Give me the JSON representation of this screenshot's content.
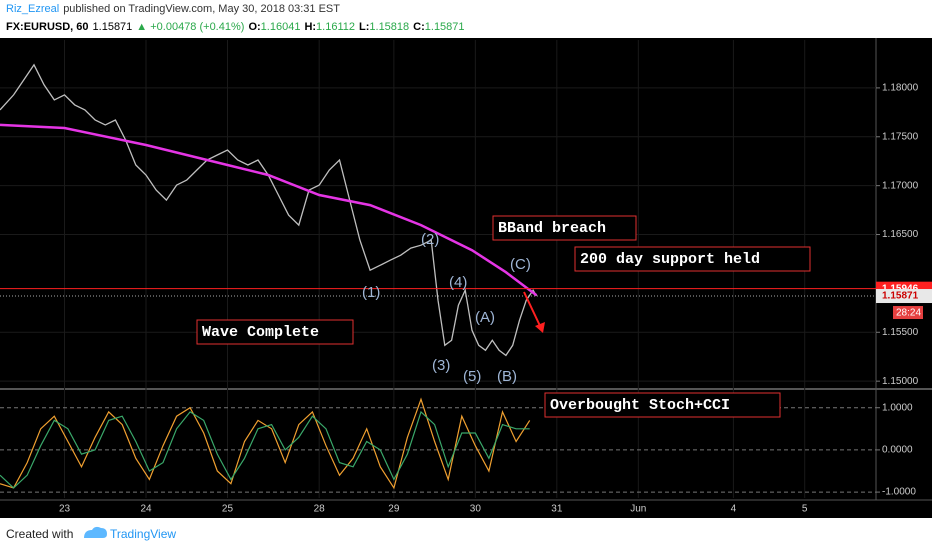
{
  "header": {
    "author": "Riz_Ezreal",
    "published": "published on TradingView.com, May 30, 2018 03:31 EST",
    "symbol": "FX:EURUSD, 60",
    "last": "1.15871",
    "change": "▲ +0.00478 (+0.41%)",
    "o_label": "O:",
    "o": "1.16041",
    "h_label": "H:",
    "h": "1.16112",
    "l_label": "L:",
    "l": "1.15818",
    "c_label": "C:",
    "c": "1.15871"
  },
  "chart_data": [
    {
      "type": "line",
      "x": [
        -19,
        -15,
        -12,
        -9,
        -6,
        -3,
        0,
        3,
        6,
        9,
        12,
        15,
        18,
        21,
        24,
        27,
        30,
        33,
        36,
        39,
        42,
        45,
        48,
        51,
        54,
        57,
        60,
        63,
        66,
        69,
        72,
        75,
        78,
        81,
        84,
        87,
        90,
        93,
        96,
        99,
        102,
        105,
        108,
        110,
        112,
        114,
        116,
        118,
        120,
        122,
        124,
        126,
        128,
        130,
        132,
        134,
        136,
        138,
        139
      ],
      "series": [
        {
          "color": "#bfbfbf",
          "values": [
            1.17775,
            1.17928,
            1.18082,
            1.18236,
            1.18031,
            1.17877,
            1.17928,
            1.17826,
            1.17775,
            1.17672,
            1.17621,
            1.17672,
            1.17467,
            1.17211,
            1.17109,
            1.16955,
            1.16852,
            1.17006,
            1.17057,
            1.1716,
            1.17262,
            1.17314,
            1.17365,
            1.17262,
            1.17211,
            1.17262,
            1.17109,
            1.16904,
            1.16699,
            1.16596,
            1.16955,
            1.17006,
            1.1716,
            1.17262,
            1.16852,
            1.16443,
            1.16135,
            1.16186,
            1.16238,
            1.16289,
            1.16361,
            1.16391,
            1.16443,
            1.15828,
            1.15367,
            1.15418,
            1.15777,
            1.1593,
            1.1552,
            1.15367,
            1.15316,
            1.15418,
            1.15316,
            1.15264,
            1.15367,
            1.15623,
            1.15828,
            1.1593,
            1.15871
          ]
        }
      ],
      "ma": {
        "color": "#e535e5",
        "x": [
          -19,
          0,
          24,
          48,
          60,
          75,
          90,
          105,
          120,
          130,
          139
        ],
        "values": [
          1.17621,
          1.1759,
          1.17416,
          1.17211,
          1.17109,
          1.16904,
          1.16801,
          1.16596,
          1.1634,
          1.16115,
          1.15879
        ]
      },
      "xlim": [
        -19,
        239
      ],
      "ylim": [
        1.1493,
        1.1849
      ],
      "xticks": [
        {
          "value": 0,
          "label": "23"
        },
        {
          "value": 24,
          "label": "24"
        },
        {
          "value": 48,
          "label": "25"
        },
        {
          "value": 75,
          "label": "28"
        },
        {
          "value": 97,
          "label": "29"
        },
        {
          "value": 121,
          "label": "30"
        },
        {
          "value": 145,
          "label": "31"
        },
        {
          "value": 169,
          "label": "Jun"
        },
        {
          "value": 197,
          "label": "4"
        },
        {
          "value": 218,
          "label": "5"
        }
      ],
      "yticks": [
        {
          "value": 1.15,
          "label": "1.15000"
        },
        {
          "value": 1.155,
          "label": "1.15500"
        },
        {
          "value": 1.165,
          "label": "1.16500"
        },
        {
          "value": 1.17,
          "label": "1.17000"
        },
        {
          "value": 1.175,
          "label": "1.17500"
        },
        {
          "value": 1.18,
          "label": "1.18000"
        }
      ],
      "hline": {
        "value": 1.15946,
        "label": "1.15946",
        "color": "#ff2020"
      },
      "last_price": {
        "value": 1.15871,
        "label": "1.15871"
      },
      "countdown": "28:24",
      "grid": true,
      "annotations": [
        "BBand breach",
        "200 day support held",
        "Wave Complete"
      ],
      "waves": [
        "(1)",
        "(2)",
        "(3)",
        "(4)",
        "(5)",
        "(A)",
        "(B)",
        "(C)"
      ]
    },
    {
      "type": "line",
      "x": [
        -19,
        -15,
        -11,
        -7,
        -3,
        1,
        5,
        9,
        13,
        17,
        21,
        25,
        29,
        33,
        37,
        41,
        45,
        49,
        53,
        57,
        61,
        65,
        69,
        73,
        77,
        81,
        85,
        89,
        93,
        97,
        101,
        105,
        109,
        113,
        117,
        121,
        125,
        129,
        133,
        137
      ],
      "series": [
        {
          "color": "#f0a030",
          "values": [
            -0.8,
            -0.9,
            -0.3,
            0.5,
            0.8,
            0.2,
            -0.4,
            0.3,
            0.9,
            0.6,
            -0.2,
            -0.7,
            0.1,
            0.8,
            1.0,
            0.4,
            -0.5,
            -0.8,
            0.2,
            0.7,
            0.5,
            -0.3,
            0.6,
            0.9,
            0.1,
            -0.6,
            -0.2,
            0.5,
            -0.4,
            -0.9,
            0.3,
            1.2,
            0.2,
            -0.7,
            0.8,
            0.1,
            -0.5,
            0.9,
            0.2,
            0.7
          ]
        },
        {
          "color": "#3aa86a",
          "values": [
            -0.6,
            -0.9,
            -0.6,
            0.1,
            0.7,
            0.5,
            -0.1,
            0.0,
            0.7,
            0.8,
            0.2,
            -0.5,
            -0.3,
            0.5,
            0.9,
            0.7,
            -0.1,
            -0.7,
            -0.2,
            0.5,
            0.6,
            0.0,
            0.3,
            0.8,
            0.5,
            -0.3,
            -0.4,
            0.2,
            0.0,
            -0.7,
            -0.1,
            0.9,
            0.6,
            -0.4,
            0.4,
            0.4,
            -0.2,
            0.6,
            0.5,
            0.5
          ]
        }
      ],
      "xlim": [
        -19,
        239
      ],
      "ylim": [
        -1.14,
        1.42
      ],
      "yticks": [
        {
          "value": 1,
          "label": "1.0000"
        },
        {
          "value": 0,
          "label": "0.0000"
        },
        {
          "value": -1,
          "label": "-1.0000"
        }
      ],
      "annotation": "Overbought Stoch+CCI"
    }
  ],
  "footer": {
    "created": "Created with",
    "brand": "TradingView"
  }
}
